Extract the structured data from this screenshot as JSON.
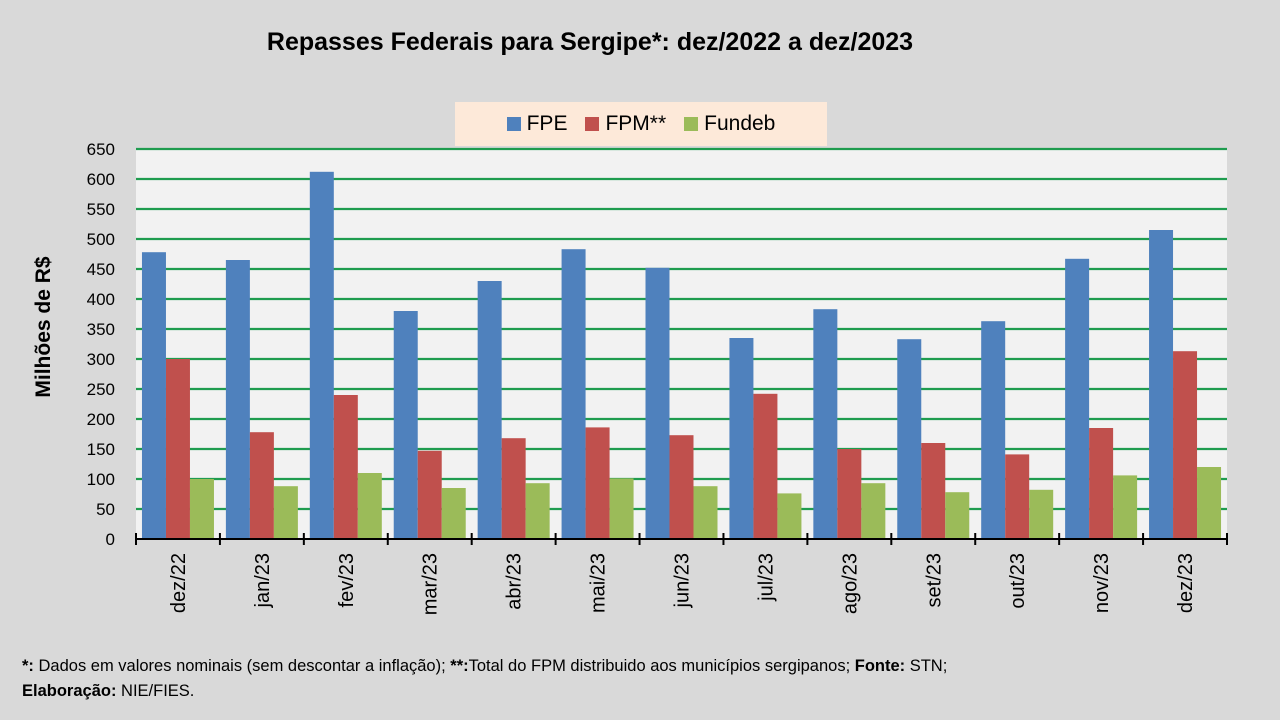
{
  "chart_data": {
    "type": "bar",
    "title": "Repasses Federais para Sergipe*: dez/2022 a dez/2023",
    "xlabel": "",
    "ylabel": "Milhões de R$",
    "ylim": [
      0,
      650
    ],
    "ytick_step": 50,
    "yticks": [
      0,
      50,
      100,
      150,
      200,
      250,
      300,
      350,
      400,
      450,
      500,
      550,
      600,
      650
    ],
    "grid": true,
    "legend_position": "top-center",
    "categories": [
      "dez/22",
      "jan/23",
      "fev/23",
      "mar/23",
      "abr/23",
      "mai/23",
      "jun/23",
      "jul/23",
      "ago/23",
      "set/23",
      "out/23",
      "nov/23",
      "dez/23"
    ],
    "series": [
      {
        "name": "FPE",
        "color": "#4f81bd",
        "values": [
          478,
          465,
          612,
          380,
          430,
          483,
          452,
          335,
          383,
          333,
          363,
          467,
          515
        ]
      },
      {
        "name": "FPM**",
        "color": "#c0504d",
        "values": [
          300,
          178,
          240,
          147,
          168,
          186,
          173,
          242,
          150,
          160,
          141,
          185,
          313
        ]
      },
      {
        "name": "Fundeb",
        "color": "#9bbb59",
        "values": [
          100,
          88,
          110,
          85,
          93,
          101,
          88,
          76,
          93,
          78,
          82,
          106,
          120
        ]
      }
    ],
    "colors": {
      "grid": "#1f9c4f",
      "plot_bg": "#f2f2f2",
      "axis": "#000000"
    }
  },
  "footer": {
    "n1_mark": "*:",
    "n1_text": " Dados em valores nominais (sem descontar a inflação); ",
    "n2_mark": "**:",
    "n2_text": "Total  do FPM distribuido aos municípios sergipanos; ",
    "source_label": "Fonte:",
    "source_text": " STN;",
    "author_label": "Elaboração:",
    "author_text": " NIE/FIES."
  }
}
